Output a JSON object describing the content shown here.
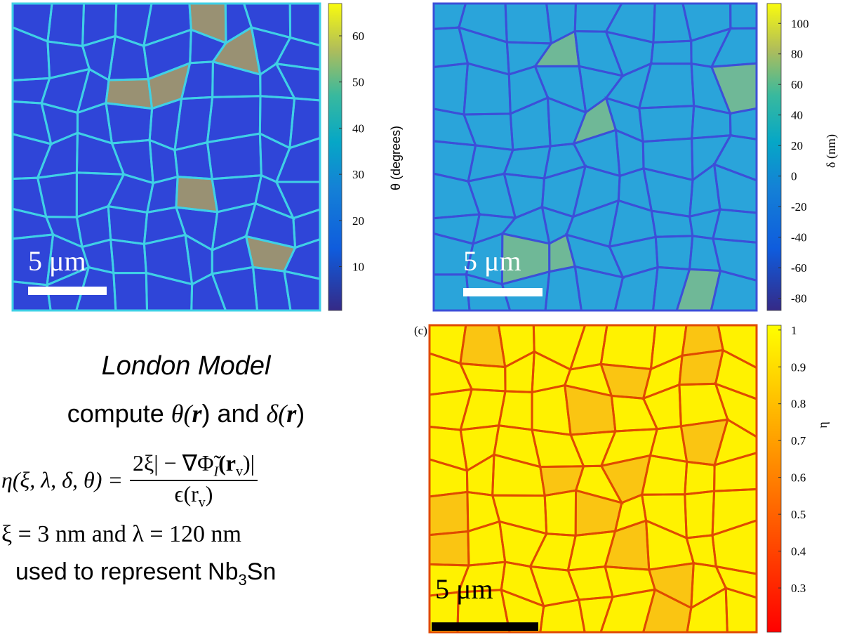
{
  "panels": [
    {
      "scale_bar": "5 μm",
      "colorbar": {
        "label": "θ (degrees)",
        "lim": [
          0.5,
          67
        ],
        "ticks": [
          10,
          20,
          30,
          40,
          50,
          60
        ]
      }
    },
    {
      "scale_bar": "5 μm",
      "colorbar": {
        "label": "δ (nm)",
        "lim": [
          -88,
          113
        ],
        "ticks": [
          -80,
          -60,
          -40,
          -20,
          0,
          20,
          40,
          60,
          80,
          100
        ]
      }
    },
    {
      "panel_label": "(c)",
      "scale_bar": "5 μm",
      "colorbar": {
        "label": "η",
        "lim": [
          0.18,
          1.013
        ],
        "ticks": [
          0.3,
          0.4,
          0.5,
          0.6,
          0.7,
          0.8,
          0.9,
          1
        ]
      }
    }
  ],
  "text": {
    "model": "London Model",
    "compute": [
      "compute ",
      "θ(",
      "r",
      ") and ",
      "δ(",
      "r",
      ")"
    ],
    "equation": {
      "lhs": "η(ξ, λ, δ, θ) =",
      "numerator": "2ξ| − ∇Φ̃",
      "numerator_sub": "I",
      "numerator_tail": "(r",
      "numerator_sub2": "v",
      "numerator_end": ")|",
      "denominator": "ϵ(r",
      "denominator_sub": "v",
      "denominator_end": ")"
    },
    "params": "ξ = 3 nm and λ = 120 nm",
    "material": [
      "used to represent Nb",
      "3",
      "Sn"
    ]
  }
}
